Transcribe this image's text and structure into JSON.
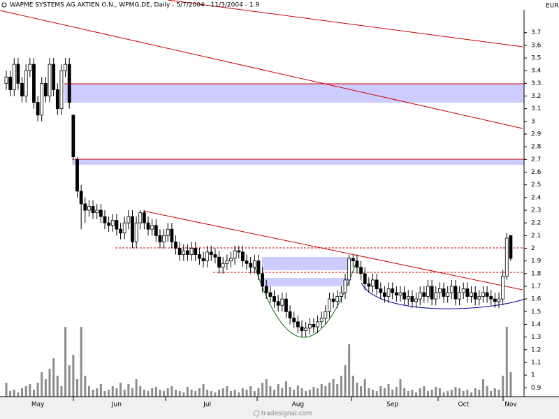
{
  "chart_data": {
    "type": "candlestick",
    "title": "WAPME SYSTEMS AG AKTIEN O.N., WPMG.DE, Daily - 5/7/2004 - 11/3/2004 - 1.9",
    "currency": "EUR",
    "watermark": "tradesignal.com",
    "categories": [
      null,
      null,
      null,
      null,
      null,
      null,
      null,
      null,
      "May",
      null,
      null,
      null,
      null,
      null,
      null,
      null,
      null,
      null,
      null,
      null,
      null,
      null,
      null,
      null,
      null,
      null,
      null,
      null,
      "Jun",
      null,
      null,
      null,
      null,
      null,
      null,
      null,
      null,
      null,
      null,
      null,
      null,
      null,
      null,
      null,
      null,
      null,
      null,
      null,
      null,
      null,
      null,
      "Jul",
      null,
      null,
      null,
      null,
      null,
      null,
      null,
      null,
      null,
      null,
      null,
      null,
      null,
      null,
      null,
      null,
      null,
      null,
      null,
      null,
      null,
      null,
      "Aug",
      null,
      null,
      null,
      null,
      null,
      null,
      null,
      null,
      null,
      null,
      null,
      null,
      null,
      null,
      null,
      null,
      null,
      null,
      null,
      null,
      null,
      null,
      null,
      "Sep",
      null,
      null,
      null,
      null,
      null,
      null,
      null,
      null,
      null,
      null,
      null,
      null,
      null,
      null,
      null,
      null,
      null,
      "Oct",
      null,
      null,
      null,
      null,
      null,
      null,
      null,
      null,
      null,
      null,
      null,
      "Nov"
    ],
    "open": [
      3.3,
      3.35,
      3.25,
      3.45,
      3.3,
      3.2,
      3.4,
      3.45,
      3.15,
      3.05,
      3.3,
      3.2,
      3.45,
      3.25,
      3.1,
      3.4,
      3.45,
      3.05,
      2.7,
      2.45,
      2.35,
      2.3,
      2.33,
      2.28,
      2.3,
      2.25,
      2.2,
      2.18,
      2.22,
      2.15,
      2.12,
      2.2,
      2.25,
      2.05,
      2.2,
      2.28,
      2.2,
      2.15,
      2.18,
      2.1,
      2.05,
      2.1,
      2.15,
      2.05,
      2.0,
      1.95,
      1.98,
      1.95,
      2.0,
      1.95,
      1.92,
      1.9,
      1.97,
      1.95,
      1.93,
      1.85,
      1.88,
      1.9,
      1.92,
      1.98,
      1.97,
      1.9,
      1.88,
      1.85,
      1.9,
      1.8,
      1.7,
      1.65,
      1.62,
      1.58,
      1.55,
      1.6,
      1.5,
      1.45,
      1.42,
      1.38,
      1.35,
      1.37,
      1.4,
      1.38,
      1.42,
      1.45,
      1.5,
      1.6,
      1.58,
      1.62,
      1.65,
      1.75,
      1.92,
      1.9,
      1.85,
      1.8,
      1.72,
      1.7,
      1.75,
      1.68,
      1.65,
      1.62,
      1.68,
      1.65,
      1.63,
      1.65,
      1.6,
      1.62,
      1.58,
      1.6,
      1.65,
      1.62,
      1.7,
      1.6,
      1.65,
      1.68,
      1.62,
      1.65,
      1.7,
      1.6,
      1.65,
      1.68,
      1.62,
      1.65,
      1.6,
      1.62,
      1.65,
      1.62,
      1.6,
      1.58,
      1.6,
      1.78,
      2.1
    ],
    "high": [
      3.4,
      3.4,
      3.5,
      3.5,
      3.35,
      3.45,
      3.5,
      3.5,
      3.2,
      3.35,
      3.35,
      3.5,
      3.5,
      3.3,
      3.45,
      3.5,
      3.5,
      3.05,
      2.72,
      2.5,
      2.4,
      2.38,
      2.38,
      2.35,
      2.35,
      2.3,
      2.25,
      2.27,
      2.27,
      2.2,
      2.25,
      2.3,
      2.3,
      2.25,
      2.3,
      2.3,
      2.25,
      2.23,
      2.23,
      2.15,
      2.15,
      2.2,
      2.2,
      2.1,
      2.05,
      2.03,
      2.03,
      2.05,
      2.05,
      2.0,
      1.97,
      2.02,
      2.02,
      2.0,
      1.98,
      1.93,
      1.95,
      1.97,
      2.02,
      2.02,
      2.02,
      1.95,
      1.93,
      1.95,
      1.95,
      1.85,
      1.75,
      1.7,
      1.67,
      1.63,
      1.65,
      1.65,
      1.55,
      1.5,
      1.47,
      1.43,
      1.42,
      1.45,
      1.45,
      1.47,
      1.5,
      1.55,
      1.65,
      1.65,
      1.67,
      1.7,
      1.8,
      1.95,
      1.95,
      1.95,
      1.9,
      1.85,
      1.77,
      1.8,
      1.8,
      1.73,
      1.7,
      1.73,
      1.73,
      1.7,
      1.7,
      1.7,
      1.67,
      1.67,
      1.65,
      1.7,
      1.7,
      1.75,
      1.75,
      1.7,
      1.73,
      1.73,
      1.7,
      1.75,
      1.75,
      1.7,
      1.73,
      1.73,
      1.7,
      1.7,
      1.67,
      1.7,
      1.7,
      1.67,
      1.65,
      1.65,
      1.83,
      2.12,
      2.1
    ],
    "low": [
      3.25,
      3.2,
      3.2,
      3.25,
      3.15,
      3.15,
      3.35,
      3.1,
      3.0,
      3.0,
      3.15,
      3.15,
      3.2,
      3.05,
      3.05,
      3.35,
      3.1,
      2.7,
      2.4,
      2.15,
      2.2,
      2.25,
      2.23,
      2.23,
      2.2,
      2.15,
      2.13,
      2.13,
      2.1,
      2.07,
      2.07,
      2.15,
      2.0,
      2.0,
      2.15,
      2.15,
      2.1,
      2.1,
      2.05,
      2.0,
      2.0,
      2.05,
      2.0,
      1.95,
      1.9,
      1.9,
      1.9,
      1.9,
      1.9,
      1.87,
      1.85,
      1.85,
      1.9,
      1.88,
      1.8,
      1.8,
      1.83,
      1.85,
      1.87,
      1.92,
      1.85,
      1.83,
      1.8,
      1.8,
      1.75,
      1.65,
      1.6,
      1.57,
      1.53,
      1.5,
      1.5,
      1.45,
      1.4,
      1.37,
      1.33,
      1.3,
      1.3,
      1.32,
      1.33,
      1.33,
      1.37,
      1.4,
      1.45,
      1.53,
      1.53,
      1.57,
      1.6,
      1.7,
      1.85,
      1.8,
      1.75,
      1.67,
      1.65,
      1.65,
      1.63,
      1.6,
      1.57,
      1.57,
      1.6,
      1.58,
      1.58,
      1.55,
      1.55,
      1.53,
      1.53,
      1.55,
      1.57,
      1.57,
      1.55,
      1.55,
      1.6,
      1.57,
      1.57,
      1.6,
      1.55,
      1.55,
      1.6,
      1.57,
      1.57,
      1.55,
      1.55,
      1.57,
      1.57,
      1.55,
      1.53,
      1.53,
      1.55,
      1.75,
      1.9
    ],
    "close": [
      3.35,
      3.25,
      3.45,
      3.3,
      3.2,
      3.4,
      3.45,
      3.15,
      3.05,
      3.3,
      3.2,
      3.45,
      3.25,
      3.1,
      3.4,
      3.45,
      3.15,
      2.72,
      2.45,
      2.35,
      2.3,
      2.33,
      2.28,
      2.3,
      2.25,
      2.2,
      2.18,
      2.22,
      2.15,
      2.12,
      2.2,
      2.25,
      2.05,
      2.2,
      2.28,
      2.2,
      2.15,
      2.18,
      2.1,
      2.05,
      2.1,
      2.15,
      2.05,
      2.0,
      1.95,
      1.98,
      1.95,
      2.0,
      1.95,
      1.92,
      1.9,
      1.97,
      1.95,
      1.93,
      1.85,
      1.88,
      1.9,
      1.92,
      1.98,
      1.97,
      1.9,
      1.88,
      1.85,
      1.9,
      1.8,
      1.7,
      1.65,
      1.62,
      1.58,
      1.55,
      1.6,
      1.5,
      1.45,
      1.42,
      1.38,
      1.35,
      1.37,
      1.4,
      1.38,
      1.42,
      1.45,
      1.5,
      1.6,
      1.58,
      1.62,
      1.65,
      1.75,
      1.92,
      1.9,
      1.85,
      1.8,
      1.72,
      1.7,
      1.75,
      1.68,
      1.65,
      1.62,
      1.68,
      1.65,
      1.63,
      1.65,
      1.6,
      1.62,
      1.58,
      1.6,
      1.65,
      1.62,
      1.7,
      1.6,
      1.65,
      1.68,
      1.62,
      1.65,
      1.7,
      1.6,
      1.65,
      1.68,
      1.62,
      1.65,
      1.6,
      1.62,
      1.65,
      1.62,
      1.6,
      1.58,
      1.6,
      1.78,
      2.08,
      1.92
    ],
    "volume": [
      20,
      8,
      10,
      6,
      12,
      15,
      18,
      10,
      20,
      35,
      25,
      40,
      55,
      30,
      15,
      100,
      45,
      60,
      25,
      100,
      30,
      15,
      10,
      12,
      18,
      8,
      10,
      15,
      12,
      20,
      10,
      18,
      12,
      25,
      15,
      10,
      8,
      12,
      14,
      10,
      8,
      12,
      15,
      10,
      8,
      6,
      14,
      10,
      8,
      12,
      18,
      10,
      8,
      6,
      10,
      12,
      15,
      8,
      10,
      6,
      12,
      10,
      15,
      8,
      12,
      20,
      25,
      15,
      10,
      18,
      12,
      22,
      14,
      10,
      16,
      12,
      8,
      10,
      14,
      12,
      18,
      15,
      20,
      25,
      18,
      30,
      45,
      75,
      30,
      20,
      15,
      25,
      12,
      10,
      8,
      15,
      12,
      18,
      10,
      14,
      25,
      12,
      8,
      10,
      6,
      12,
      15,
      8,
      10,
      14,
      12,
      6,
      8,
      10,
      14,
      12,
      8,
      10,
      6,
      12,
      10,
      25,
      15,
      8,
      12,
      10,
      30,
      100,
      35
    ],
    "ylim": [
      0.83,
      3.88
    ],
    "yticks": [
      3.7,
      3.6,
      3.5,
      3.4,
      3.3,
      3.2,
      3.1,
      3,
      2.9,
      2.8,
      2.7,
      2.6,
      2.5,
      2.4,
      2.3,
      2.2,
      2.1,
      2,
      1.9,
      1.8,
      1.7,
      1.6,
      1.5,
      1.4,
      1.3,
      1.2,
      1.1,
      1,
      0.9
    ],
    "volume_lim": [
      0,
      130
    ],
    "up_color": "#ffffff",
    "down_color": "#000000",
    "volume_color": "#8c8c8c"
  }
}
